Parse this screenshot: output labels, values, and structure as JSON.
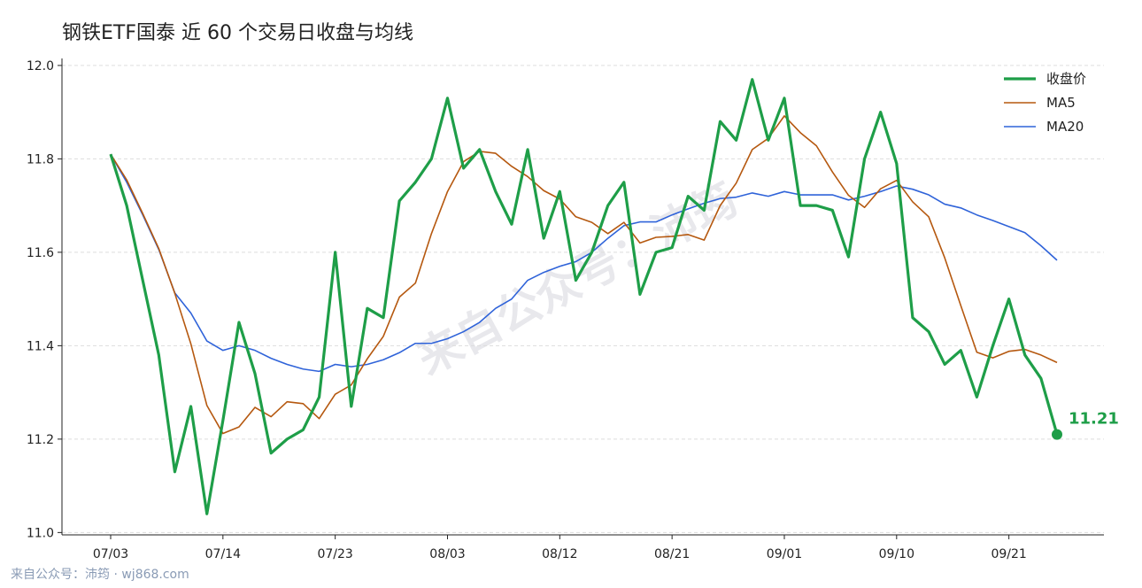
{
  "chart_data": {
    "type": "line",
    "title": "钢铁ETF国泰 近 60 个交易日收盘与均线",
    "categories": [
      "07/03",
      null,
      null,
      null,
      null,
      null,
      null,
      "07/14",
      null,
      null,
      null,
      null,
      null,
      null,
      "07/23",
      null,
      null,
      null,
      null,
      null,
      null,
      "08/03",
      null,
      null,
      null,
      null,
      null,
      null,
      "08/12",
      null,
      null,
      null,
      null,
      null,
      null,
      "08/21",
      null,
      null,
      null,
      null,
      null,
      null,
      "09/01",
      null,
      null,
      null,
      null,
      null,
      null,
      "09/10",
      null,
      null,
      null,
      null,
      null,
      null,
      "09/21",
      null,
      null,
      null
    ],
    "series": [
      {
        "name": "收盘价",
        "color": "#1e9e48",
        "values": [
          11.81,
          11.7,
          11.54,
          11.38,
          11.13,
          11.27,
          11.04,
          11.24,
          11.45,
          11.34,
          11.17,
          11.2,
          11.22,
          11.29,
          11.6,
          11.27,
          11.48,
          11.46,
          11.71,
          11.75,
          11.8,
          11.93,
          11.78,
          11.82,
          11.73,
          11.66,
          11.82,
          11.63,
          11.73,
          11.54,
          11.6,
          11.7,
          11.75,
          11.51,
          11.6,
          11.61,
          11.72,
          11.69,
          11.88,
          11.84,
          11.97,
          11.84,
          11.93,
          11.7,
          11.7,
          11.69,
          11.59,
          11.8,
          11.9,
          11.79,
          11.46,
          11.43,
          11.36,
          11.39,
          11.29,
          11.4,
          11.5,
          11.38,
          11.33,
          11.21
        ]
      },
      {
        "name": "MA5",
        "color": "#b5580f",
        "values": [
          11.81,
          11.755,
          11.683,
          11.608,
          11.512,
          11.404,
          11.272,
          11.212,
          11.226,
          11.268,
          11.248,
          11.28,
          11.276,
          11.244,
          11.296,
          11.316,
          11.372,
          11.42,
          11.504,
          11.534,
          11.64,
          11.73,
          11.794,
          11.816,
          11.812,
          11.784,
          11.762,
          11.732,
          11.714,
          11.676,
          11.664,
          11.64,
          11.664,
          11.62,
          11.632,
          11.634,
          11.638,
          11.626,
          11.7,
          11.748,
          11.82,
          11.844,
          11.892,
          11.856,
          11.828,
          11.772,
          11.722,
          11.696,
          11.736,
          11.754,
          11.708,
          11.676,
          11.588,
          11.486,
          11.386,
          11.374,
          11.388,
          11.392,
          11.38,
          11.364
        ]
      },
      {
        "name": "MA20",
        "color": "#2f63d9",
        "values": [
          11.81,
          11.75,
          11.68,
          11.606,
          11.513,
          11.47,
          11.41,
          11.39,
          11.4,
          11.39,
          11.373,
          11.36,
          11.35,
          11.345,
          11.36,
          11.355,
          11.36,
          11.37,
          11.385,
          11.405,
          11.405,
          11.415,
          11.43,
          11.45,
          11.48,
          11.5,
          11.54,
          11.557,
          11.57,
          11.58,
          11.6,
          11.63,
          11.657,
          11.665,
          11.665,
          11.68,
          11.693,
          11.705,
          11.715,
          11.718,
          11.727,
          11.72,
          11.73,
          11.723,
          11.723,
          11.723,
          11.712,
          11.72,
          11.73,
          11.742,
          11.735,
          11.723,
          11.703,
          11.695,
          11.68,
          11.668,
          11.655,
          11.642,
          11.614,
          11.583
        ]
      }
    ],
    "ylim": [
      10.995,
      12.015
    ],
    "yticks": [
      {
        "value": 11.0,
        "label": "11.0"
      },
      11.2,
      11.4,
      11.6,
      11.8,
      {
        "value": 12.0,
        "label": "12.0"
      }
    ],
    "grid": true,
    "legend": "upper right"
  },
  "watermark": "来自公众号：沛筠",
  "footer": "来自公众号：沛筠 · wj868.com"
}
